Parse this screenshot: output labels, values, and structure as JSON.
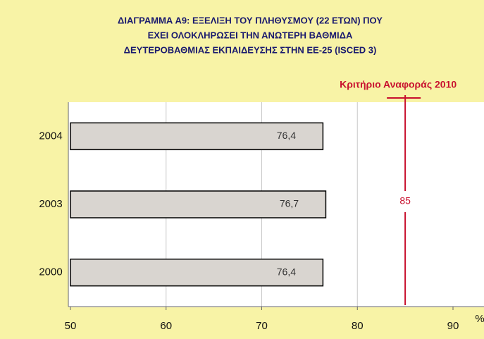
{
  "chart_data": {
    "type": "hbar",
    "title": [
      "ΔΙΑΓΡΑΜΜΑ Α9: ΕΞΕΛΙΞΗ ΤΟΥ ΠΛΗΘΥΣΜΟΥ (22 ΕΤΩΝ) ΠΟΥ",
      "ΕΧΕΙ ΟΛΟΚΛΗΡΩΣΕΙ ΤΗΝ ΑΝΩΤΕΡΗ ΒΑΘΜΙΔΑ",
      "ΔΕΥΤΕΡΟΒΑΘΜΙΑΣ ΕΚΠΑΙΔΕΥΣΗΣ  ΣΤΗΝ ΕΕ-25 (ISCED 3)"
    ],
    "categories": [
      "2004",
      "2003",
      "2000"
    ],
    "values": [
      76.4,
      76.7,
      76.4
    ],
    "value_labels": [
      "76,4",
      "76,7",
      "76,4"
    ],
    "color": "#d9d5d0",
    "xlim": [
      50,
      90
    ],
    "xticks": [
      50,
      60,
      70,
      80,
      90
    ],
    "x_unit": "%",
    "grid": true,
    "reference": {
      "value": 85,
      "label": "85",
      "annotation": "Κριτήριο Αναφοράς 2010",
      "color": "#c8102e"
    }
  }
}
